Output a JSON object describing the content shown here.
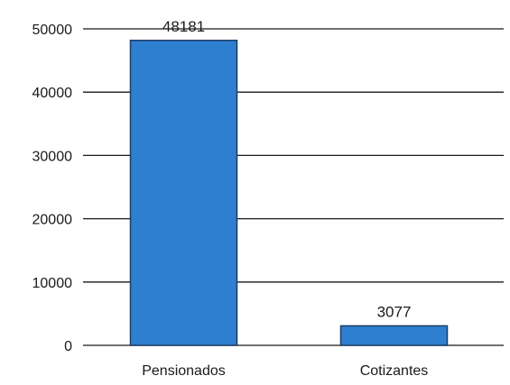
{
  "chart_data": {
    "type": "bar",
    "title": "",
    "xlabel": "",
    "ylabel": "",
    "categories": [
      "Pensionados",
      "Cotizantes"
    ],
    "values": [
      48181,
      3077
    ],
    "data_labels": [
      "48181",
      "3077"
    ],
    "ylim": [
      0,
      50000
    ],
    "yticks": [
      0,
      10000,
      20000,
      30000,
      40000,
      50000
    ],
    "ytick_labels": [
      "0",
      "10000",
      "20000",
      "30000",
      "40000",
      "50000"
    ],
    "grid": true,
    "legend": "none",
    "bar_color": "#2f7fd0",
    "bar_edge_color": "#1d3d66"
  }
}
